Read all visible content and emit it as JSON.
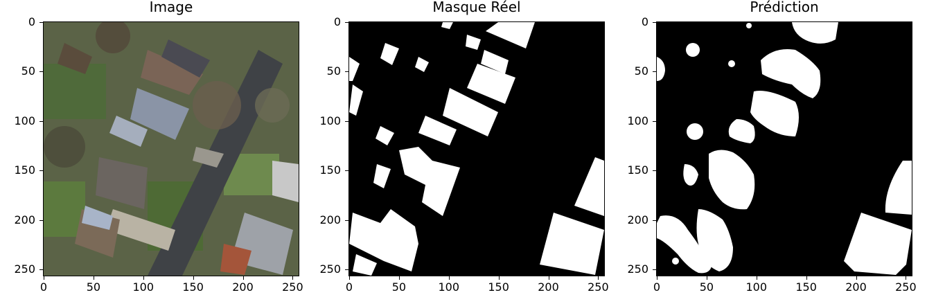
{
  "panels": [
    {
      "title": "Image"
    },
    {
      "title": "Masque Réel"
    },
    {
      "title": "Prédiction"
    }
  ],
  "y_ticks": [
    "0",
    "50",
    "100",
    "150",
    "200",
    "250"
  ],
  "x_ticks": [
    "0",
    "50",
    "100",
    "150",
    "200",
    "250"
  ],
  "axis_range": [
    0,
    256
  ],
  "colors": {
    "mask_fg": "#ffffff",
    "mask_bg": "#000000"
  }
}
